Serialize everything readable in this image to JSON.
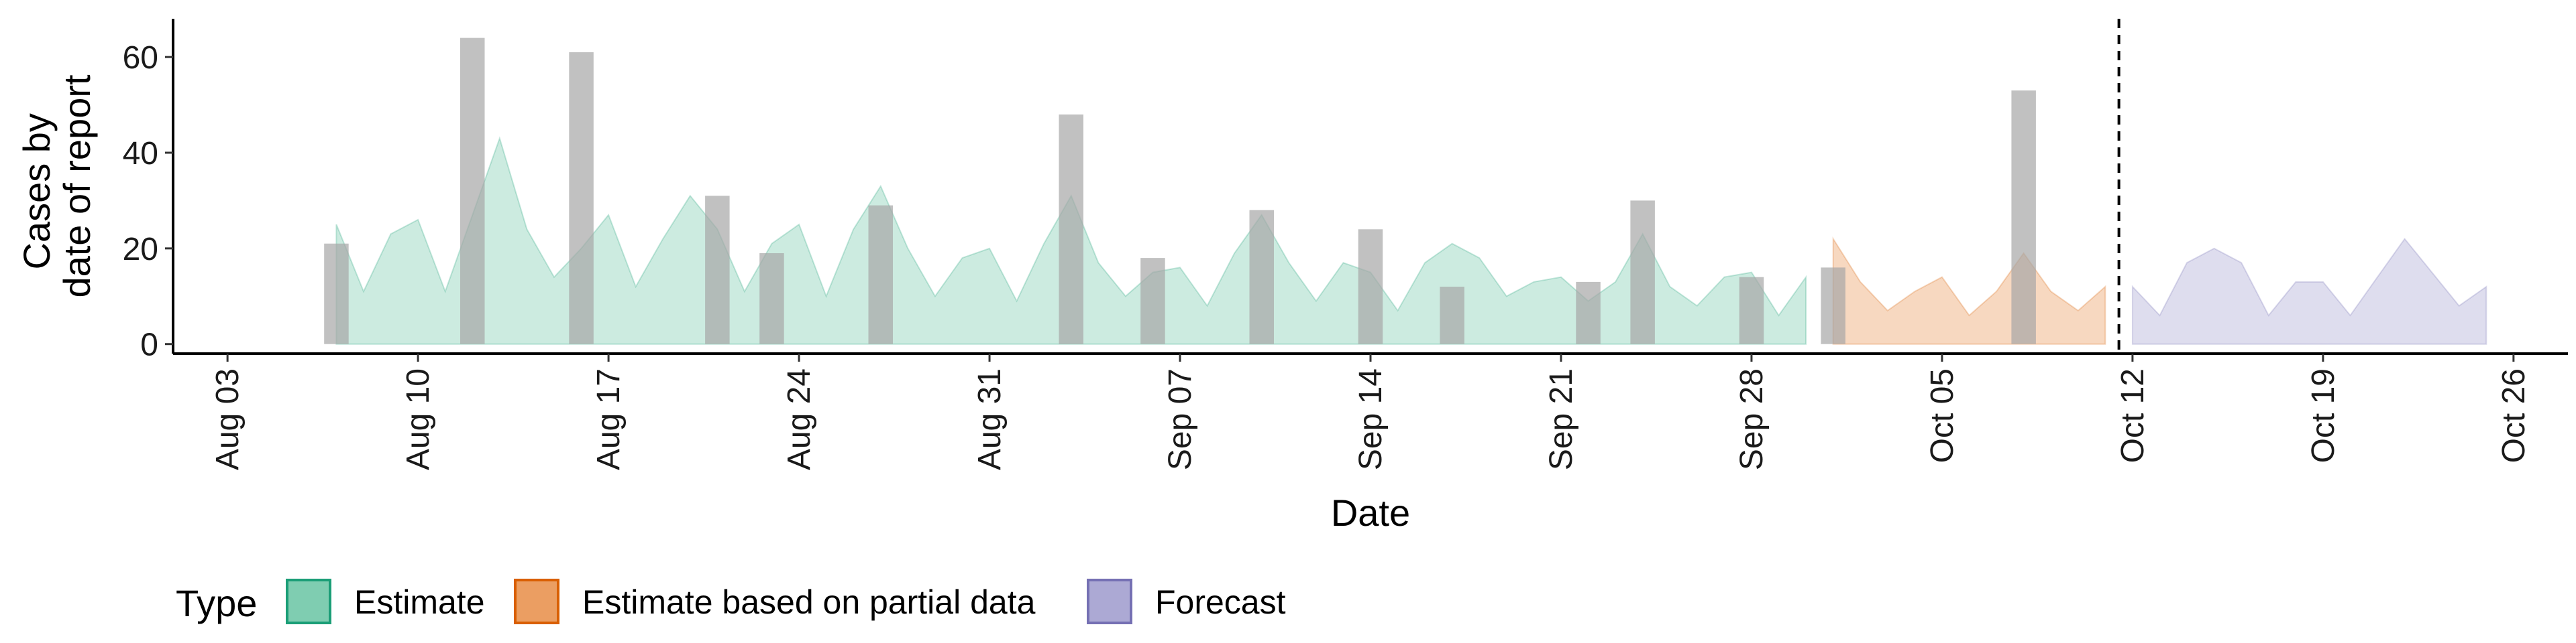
{
  "chart_data": {
    "type": "bar",
    "xlabel": "Date",
    "ylabel_lines": [
      "Cases by",
      "date of report"
    ],
    "x_range": [
      "2020-08-01",
      "2020-10-28"
    ],
    "ylim": [
      -2,
      68
    ],
    "y_ticks": [
      0,
      20,
      40,
      60
    ],
    "x_ticks": [
      {
        "date": "2020-08-03",
        "label": "Aug 03"
      },
      {
        "date": "2020-08-10",
        "label": "Aug 10"
      },
      {
        "date": "2020-08-17",
        "label": "Aug 17"
      },
      {
        "date": "2020-08-24",
        "label": "Aug 24"
      },
      {
        "date": "2020-08-31",
        "label": "Aug 31"
      },
      {
        "date": "2020-09-07",
        "label": "Sep 07"
      },
      {
        "date": "2020-09-14",
        "label": "Sep 14"
      },
      {
        "date": "2020-09-21",
        "label": "Sep 21"
      },
      {
        "date": "2020-09-28",
        "label": "Sep 28"
      },
      {
        "date": "2020-10-05",
        "label": "Oct 05"
      },
      {
        "date": "2020-10-12",
        "label": "Oct 12"
      },
      {
        "date": "2020-10-19",
        "label": "Oct 19"
      },
      {
        "date": "2020-10-26",
        "label": "Oct 26"
      }
    ],
    "reported_cases": [
      {
        "date": "2020-08-07",
        "value": 21
      },
      {
        "date": "2020-08-12",
        "value": 64
      },
      {
        "date": "2020-08-16",
        "value": 61
      },
      {
        "date": "2020-08-21",
        "value": 31
      },
      {
        "date": "2020-08-23",
        "value": 19
      },
      {
        "date": "2020-08-27",
        "value": 29
      },
      {
        "date": "2020-09-03",
        "value": 48
      },
      {
        "date": "2020-09-06",
        "value": 18
      },
      {
        "date": "2020-09-10",
        "value": 28
      },
      {
        "date": "2020-09-14",
        "value": 24
      },
      {
        "date": "2020-09-17",
        "value": 12
      },
      {
        "date": "2020-09-22",
        "value": 13
      },
      {
        "date": "2020-09-24",
        "value": 30
      },
      {
        "date": "2020-09-28",
        "value": 14
      },
      {
        "date": "2020-10-01",
        "value": 16
      },
      {
        "date": "2020-10-08",
        "value": 53
      }
    ],
    "series": [
      {
        "name": "Estimate",
        "color": "#1b9e77",
        "x": [
          "2020-08-07",
          "2020-08-08",
          "2020-08-09",
          "2020-08-10",
          "2020-08-11",
          "2020-08-12",
          "2020-08-13",
          "2020-08-14",
          "2020-08-15",
          "2020-08-16",
          "2020-08-17",
          "2020-08-18",
          "2020-08-19",
          "2020-08-20",
          "2020-08-21",
          "2020-08-22",
          "2020-08-23",
          "2020-08-24",
          "2020-08-25",
          "2020-08-26",
          "2020-08-27",
          "2020-08-28",
          "2020-08-29",
          "2020-08-30",
          "2020-08-31",
          "2020-09-01",
          "2020-09-02",
          "2020-09-03",
          "2020-09-04",
          "2020-09-05",
          "2020-09-06",
          "2020-09-07",
          "2020-09-08",
          "2020-09-09",
          "2020-09-10",
          "2020-09-11",
          "2020-09-12",
          "2020-09-13",
          "2020-09-14",
          "2020-09-15",
          "2020-09-16",
          "2020-09-17",
          "2020-09-18",
          "2020-09-19",
          "2020-09-20",
          "2020-09-21",
          "2020-09-22",
          "2020-09-23",
          "2020-09-24",
          "2020-09-25",
          "2020-09-26",
          "2020-09-27",
          "2020-09-28",
          "2020-09-29",
          "2020-09-30"
        ],
        "values": [
          25,
          11,
          23,
          26,
          11,
          27,
          43,
          24,
          14,
          20,
          27,
          12,
          22,
          31,
          24,
          11,
          21,
          25,
          10,
          24,
          33,
          20,
          10,
          18,
          20,
          9,
          21,
          31,
          17,
          10,
          15,
          16,
          8,
          19,
          27,
          17,
          9,
          17,
          15,
          7,
          17,
          21,
          18,
          10,
          13,
          14,
          9,
          13,
          23,
          12,
          8,
          14,
          15,
          6,
          14
        ]
      },
      {
        "name": "Estimate based on partial data",
        "color": "#d95f02",
        "x": [
          "2020-10-01",
          "2020-10-02",
          "2020-10-03",
          "2020-10-04",
          "2020-10-05",
          "2020-10-06",
          "2020-10-07",
          "2020-10-08",
          "2020-10-09",
          "2020-10-10",
          "2020-10-11"
        ],
        "values": [
          22,
          13,
          7,
          11,
          14,
          6,
          11,
          19,
          11,
          7,
          12
        ]
      },
      {
        "name": "Forecast",
        "color": "#7570b3",
        "x": [
          "2020-10-12",
          "2020-10-13",
          "2020-10-14",
          "2020-10-15",
          "2020-10-16",
          "2020-10-17",
          "2020-10-18",
          "2020-10-19",
          "2020-10-20",
          "2020-10-21",
          "2020-10-22",
          "2020-10-23",
          "2020-10-24",
          "2020-10-25"
        ],
        "values": [
          12,
          6,
          17,
          20,
          17,
          6,
          13,
          13,
          6,
          14,
          22,
          15,
          8,
          12
        ]
      }
    ],
    "forecast_divider_date": "2020-10-11",
    "grid": false,
    "legend": {
      "title": "Type",
      "placement": "bottom",
      "entries": [
        {
          "label": "Estimate",
          "fill": "#7fcdb1",
          "stroke": "#1b9e77"
        },
        {
          "label": "Estimate based on partial data",
          "fill": "#eb9e62",
          "stroke": "#d95f02"
        },
        {
          "label": "Forecast",
          "fill": "#aca9d4",
          "stroke": "#7570b3"
        }
      ]
    },
    "bar_color": "#a6a6a6"
  }
}
